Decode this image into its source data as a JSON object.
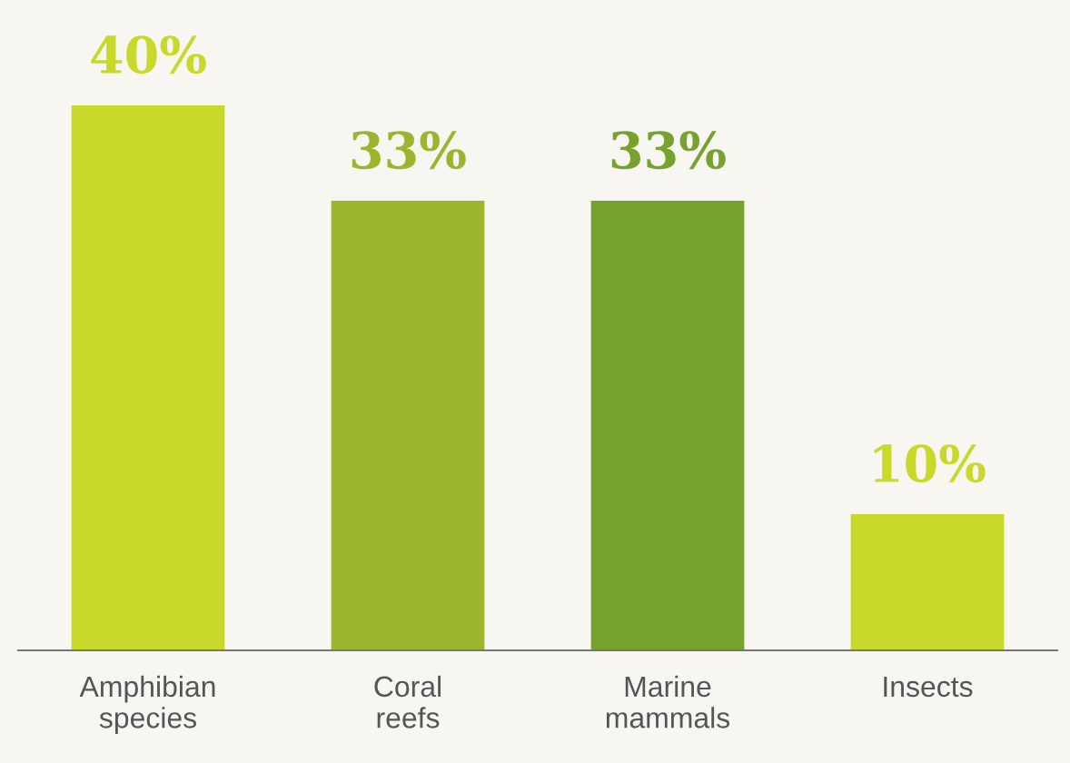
{
  "chart_data": {
    "type": "bar",
    "categories": [
      "Amphibian\nspecies",
      "Coral\nreefs",
      "Marine\nmammals",
      "Insects"
    ],
    "values": [
      40,
      33,
      33,
      10
    ],
    "colors": [
      "#c8d92b",
      "#9cb52f",
      "#78a22f",
      "#c8d92b"
    ],
    "value_labels": [
      "40%",
      "33%",
      "33%",
      "10%"
    ],
    "grid": false
  }
}
